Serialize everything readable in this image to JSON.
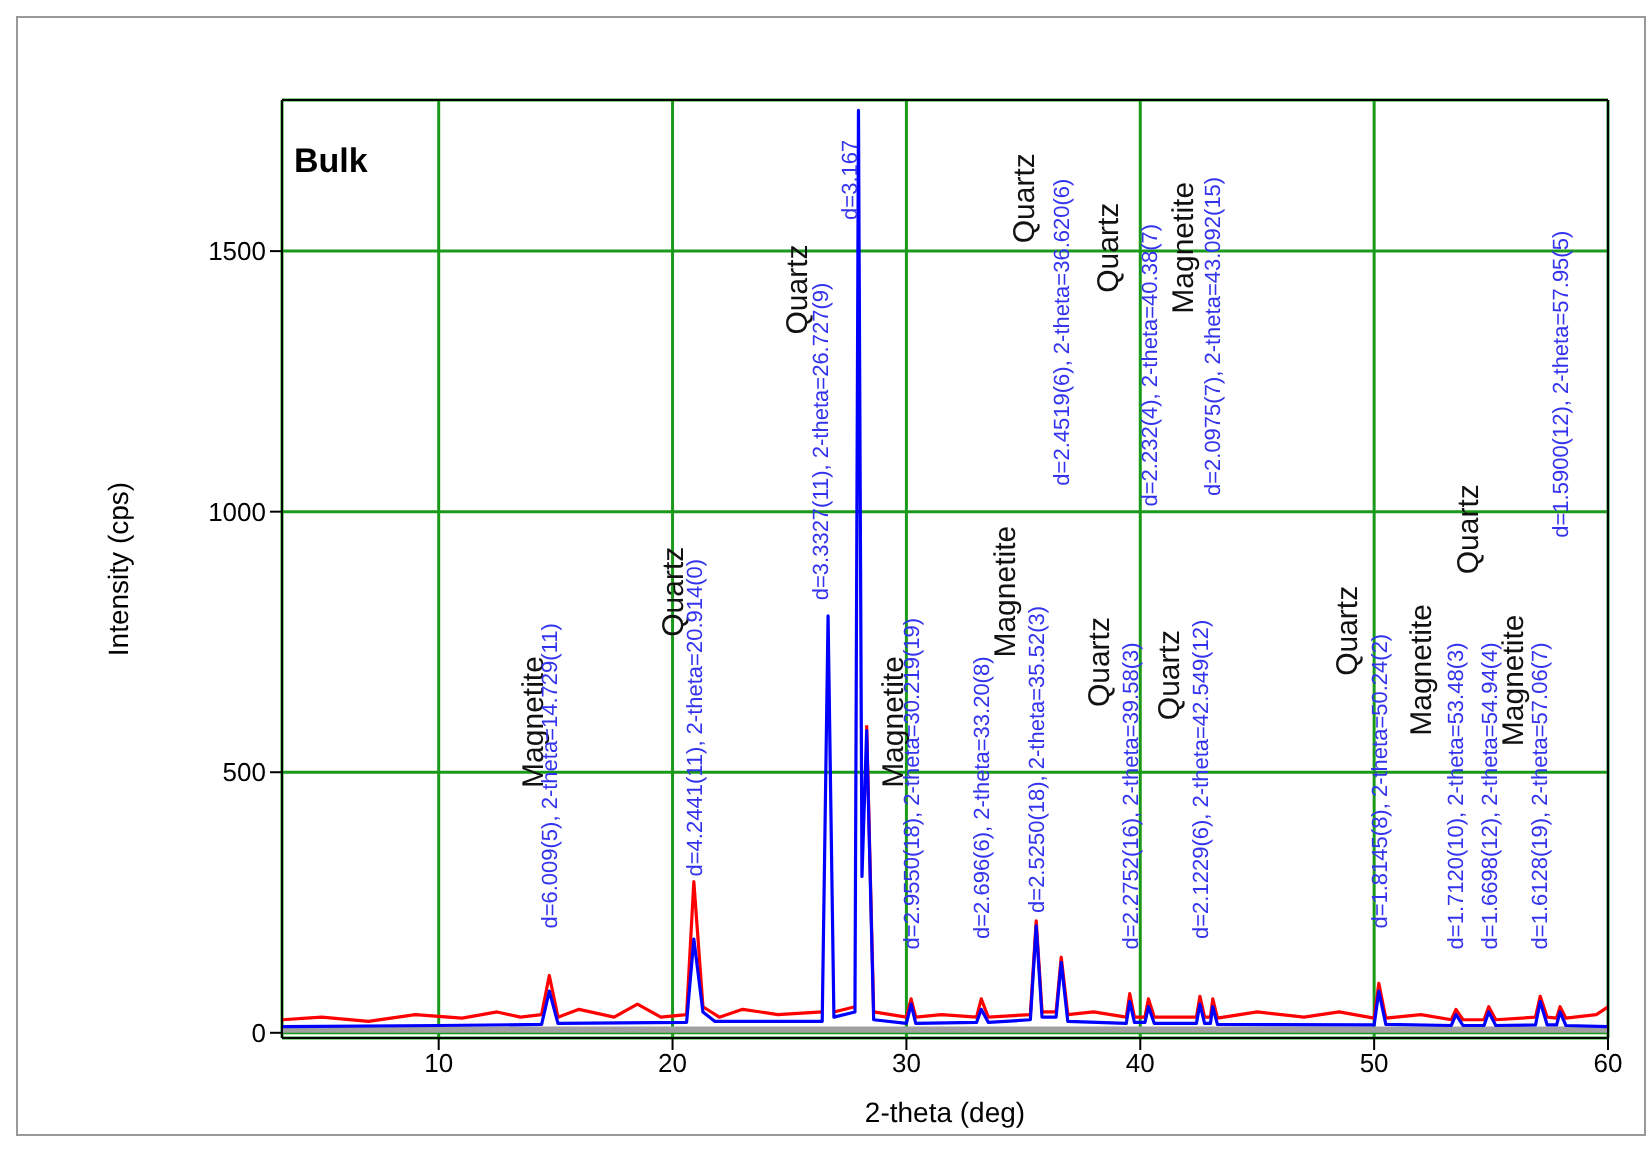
{
  "chart_data": {
    "type": "line",
    "title": "Bulk",
    "xlabel": "2-theta (deg)",
    "ylabel": "Intensity (cps)",
    "xlim": [
      3.3,
      60
    ],
    "ylim": [
      -10,
      1790
    ],
    "xticks": [
      10,
      20,
      30,
      40,
      50,
      60
    ],
    "yticks": [
      0,
      500,
      1000,
      1500
    ],
    "grid": true,
    "legend": false,
    "marker": "none",
    "line_style": "solid",
    "series": [
      {
        "type": "area",
        "color": "#a0a0a0",
        "x": [
          3.3,
          60
        ],
        "values": [
          10,
          10
        ]
      },
      {
        "color": "#ff0000",
        "x": [
          3.3,
          5,
          7,
          9,
          11,
          12.5,
          13.5,
          14.4,
          14.73,
          15.1,
          16,
          17.5,
          18.5,
          19.5,
          20.6,
          20.91,
          21.3,
          22,
          23,
          24.5,
          26.4,
          26.65,
          26.9,
          27.8,
          27.95,
          28.1,
          28.3,
          28.6,
          30.0,
          30.2,
          30.4,
          31.5,
          33.0,
          33.2,
          33.5,
          35.3,
          35.55,
          35.8,
          36.4,
          36.62,
          36.9,
          38,
          39.4,
          39.55,
          39.75,
          40.2,
          40.35,
          40.6,
          42.4,
          42.55,
          42.75,
          43.0,
          43.1,
          43.3,
          45,
          47,
          48.5,
          50.0,
          50.2,
          50.5,
          52,
          53.3,
          53.5,
          53.8,
          54.7,
          54.9,
          55.2,
          56.9,
          57.1,
          57.4,
          57.8,
          57.95,
          58.2,
          59.5,
          60
        ],
        "values": [
          25,
          30,
          22,
          35,
          28,
          40,
          30,
          35,
          110,
          30,
          45,
          30,
          55,
          30,
          35,
          290,
          50,
          30,
          45,
          35,
          40,
          null,
          40,
          50,
          null,
          null,
          590,
          40,
          30,
          65,
          30,
          35,
          30,
          65,
          30,
          35,
          215,
          40,
          40,
          145,
          35,
          40,
          30,
          75,
          30,
          30,
          65,
          30,
          30,
          70,
          30,
          30,
          65,
          28,
          40,
          30,
          40,
          28,
          95,
          28,
          35,
          25,
          45,
          25,
          25,
          50,
          25,
          30,
          70,
          30,
          28,
          50,
          28,
          35,
          50
        ]
      },
      {
        "color": "#0000ff",
        "x": [
          3.3,
          10,
          14.4,
          14.73,
          15.1,
          20.6,
          20.91,
          21.3,
          21.8,
          26.4,
          26.65,
          26.9,
          27.8,
          27.95,
          28.1,
          28.3,
          28.6,
          30.0,
          30.2,
          30.4,
          33.0,
          33.2,
          33.5,
          35.3,
          35.55,
          35.8,
          36.4,
          36.62,
          36.9,
          39.4,
          39.55,
          39.75,
          40.2,
          40.35,
          40.6,
          42.4,
          42.55,
          42.75,
          43.0,
          43.1,
          43.3,
          50.0,
          50.2,
          50.5,
          53.3,
          53.5,
          53.8,
          54.7,
          54.9,
          55.2,
          56.9,
          57.1,
          57.4,
          57.8,
          57.95,
          58.2,
          60
        ],
        "values": [
          12,
          14,
          16,
          80,
          18,
          20,
          180,
          40,
          22,
          22,
          800,
          30,
          40,
          1770,
          300,
          580,
          25,
          18,
          55,
          18,
          20,
          45,
          20,
          25,
          205,
          30,
          30,
          135,
          22,
          18,
          60,
          20,
          20,
          50,
          18,
          18,
          55,
          18,
          18,
          50,
          16,
          15,
          80,
          16,
          14,
          35,
          14,
          14,
          40,
          14,
          15,
          60,
          15,
          15,
          40,
          14,
          12
        ]
      }
    ],
    "annotations": [
      "Magnetite",
      "d=6.009(5), 2-theta=14.729(11)",
      "Quartz",
      "d=4.2441(11), 2-theta=20.914(0)",
      "Quartz",
      "d=3.3327(11), 2-theta=26.727(9)",
      "d=3.167",
      "Magnetite",
      "d=2.9550(18), 2-theta=30.219(19)",
      "d=2.696(6), 2-theta=33.20(8)",
      "Magnetite",
      "d=2.5250(18), 2-theta=35.52(3)",
      "Quartz",
      "d=2.4519(6), 2-theta=36.620(6)",
      "Quartz",
      "d=2.2752(16), 2-theta=39.58(3)",
      "Quartz",
      "d=2.232(4), 2-theta=40.38(7)",
      "Quartz",
      "d=2.1229(6), 2-theta=42.549(12)",
      "Magnetite",
      "d=2.0975(7), 2-theta=43.092(15)",
      "Quartz",
      "d=1.8145(8), 2-theta=50.24(2)",
      "Magnetite",
      "d=1.7120(10), 2-theta=53.48(3)",
      "Quartz",
      "d=1.6698(12), 2-theta=54.94(4)",
      "Magnetite",
      "d=1.6128(19), 2-theta=57.06(7)",
      "d=1.5900(12), 2-theta=57.95(5)"
    ]
  }
}
